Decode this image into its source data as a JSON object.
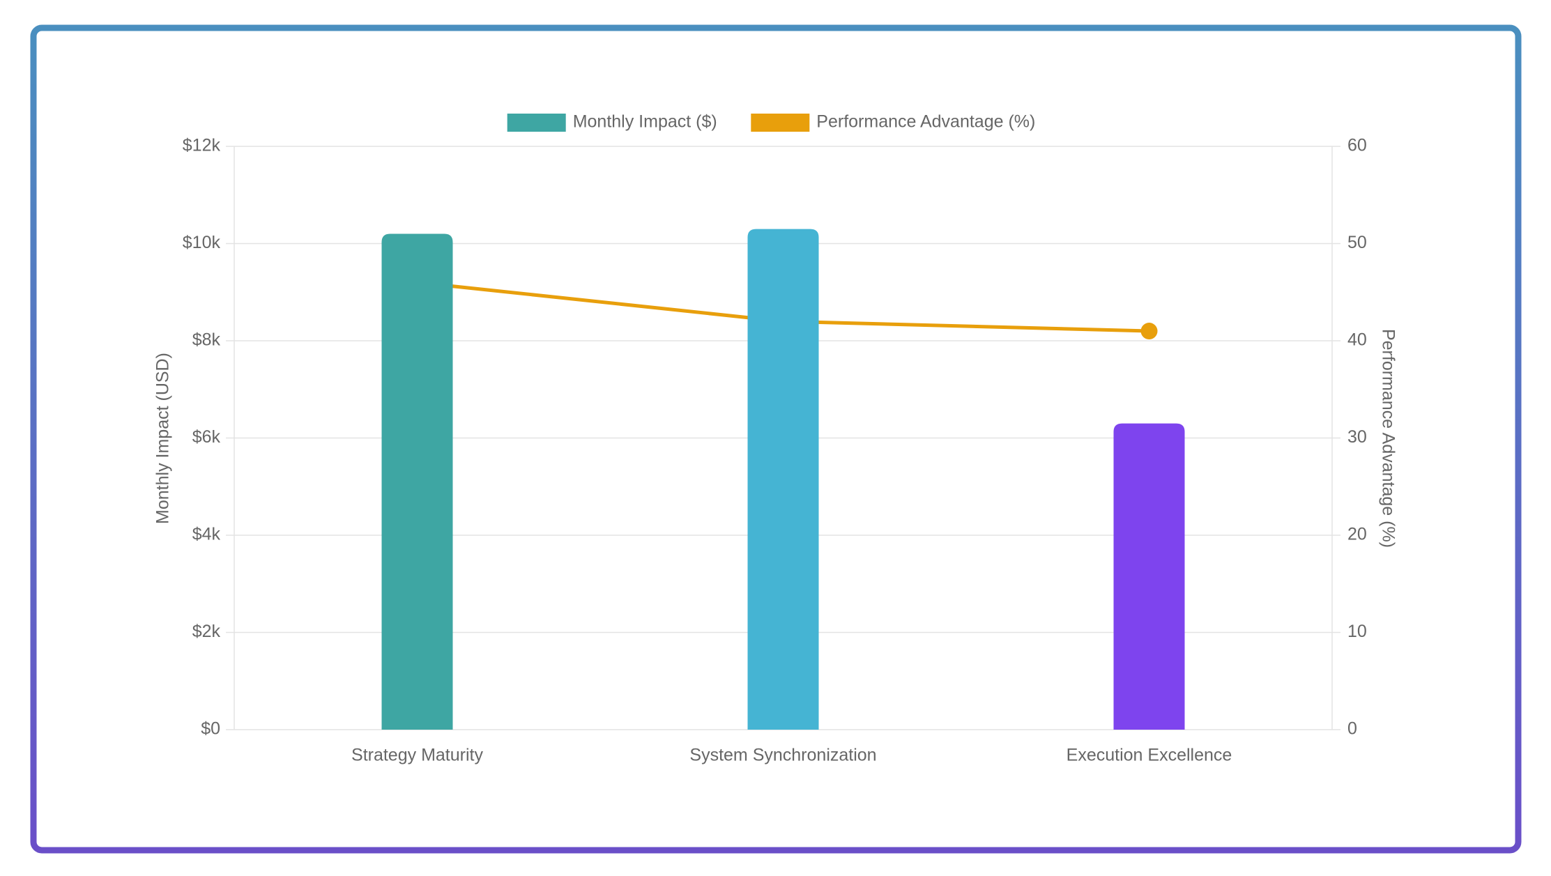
{
  "chart_data": {
    "type": "bar-line",
    "categories": [
      "Strategy Maturity",
      "System Synchronization",
      "Execution Excellence"
    ],
    "series": [
      {
        "name": "Monthly Impact ($)",
        "type": "bar",
        "color": "#3ea6a3",
        "colors": [
          "#3ea6a3",
          "#45b4d3",
          "#7e44ee"
        ],
        "values": [
          10200,
          10300,
          6300
        ]
      },
      {
        "name": "Performance Advantage (%)",
        "type": "line",
        "axis": "y2",
        "color": "#e89f0c",
        "values": [
          46,
          42,
          41
        ]
      }
    ],
    "y_label": "Monthly Impact (USD)",
    "y2_label": "Performance Advantage (%)",
    "ylim": [
      0,
      12000
    ],
    "yticks": [
      {
        "value": 0,
        "label": "$0"
      },
      {
        "value": 2000,
        "label": "$2k"
      },
      {
        "value": 4000,
        "label": "$4k"
      },
      {
        "value": 6000,
        "label": "$6k"
      },
      {
        "value": 8000,
        "label": "$8k"
      },
      {
        "value": 10000,
        "label": "$10k"
      },
      {
        "value": 12000,
        "label": "$12k"
      }
    ],
    "y2lim": [
      0,
      60
    ],
    "y2ticks": [
      0,
      10,
      20,
      30,
      40,
      50,
      60
    ],
    "grid": true,
    "legend": "top"
  }
}
